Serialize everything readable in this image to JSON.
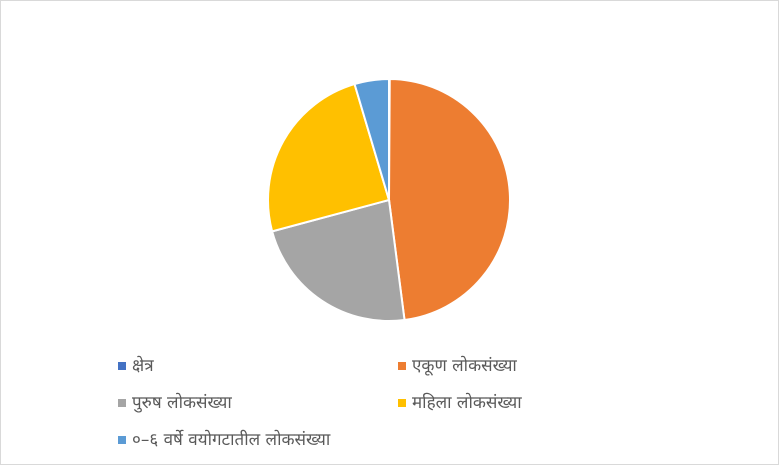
{
  "chart_data": {
    "type": "pie",
    "series": [
      {
        "name": "क्षेत्र",
        "color": "#4472c4",
        "values": [
          0.1
        ]
      },
      {
        "name": "एकूण लोकसंख्या",
        "color": "#ed7d31",
        "values": [
          47.9
        ]
      },
      {
        "name": "पुरुष लोकसंख्या",
        "color": "#a5a5a5",
        "values": [
          22.9
        ]
      },
      {
        "name": "महिला लोकसंख्या",
        "color": "#ffc000",
        "values": [
          24.6
        ]
      },
      {
        "name": "०–६ वर्षे वयोगटातील लोकसंख्या",
        "color": "#5b9bd5",
        "values": [
          4.6
        ]
      }
    ]
  }
}
